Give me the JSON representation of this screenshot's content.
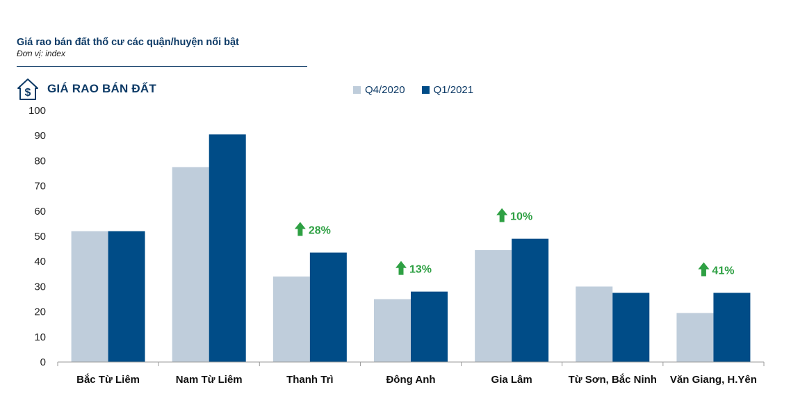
{
  "header": {
    "title": "Giá rao bán đất thổ cư các quận/huyện nổi bật",
    "unit": "Đơn vị: index"
  },
  "badge": {
    "label": "GIÁ RAO BÁN ĐẤT",
    "icon": "house-dollar-icon"
  },
  "colors": {
    "q4_2020": "#bfcddb",
    "q1_2021": "#004c87",
    "accent": "#0d3a66",
    "up": "#2ea043"
  },
  "chart_data": {
    "type": "bar",
    "categories": [
      "Bắc Từ Liêm",
      "Nam Từ Liêm",
      "Thanh Trì",
      "Đông Anh",
      "Gia Lâm",
      "Từ Sơn, Bắc Ninh",
      "Văn Giang, H.Yên"
    ],
    "series": [
      {
        "name": "Q4/2020",
        "values": [
          52,
          77.5,
          34,
          25,
          44.5,
          30,
          19.5
        ]
      },
      {
        "name": "Q1/2021",
        "values": [
          52,
          90.5,
          43.5,
          28,
          49,
          27.5,
          27.5
        ]
      }
    ],
    "annotations": [
      {
        "category": "Thanh Trì",
        "text": "28%"
      },
      {
        "category": "Đông Anh",
        "text": "13%"
      },
      {
        "category": "Gia Lâm",
        "text": "10%"
      },
      {
        "category": "Văn Giang, H.Yên",
        "text": "41%"
      }
    ],
    "ylim": [
      0,
      100
    ],
    "yticks": [
      0,
      10,
      20,
      30,
      40,
      50,
      60,
      70,
      80,
      90,
      100
    ],
    "legend_position": "top",
    "grid": false
  }
}
